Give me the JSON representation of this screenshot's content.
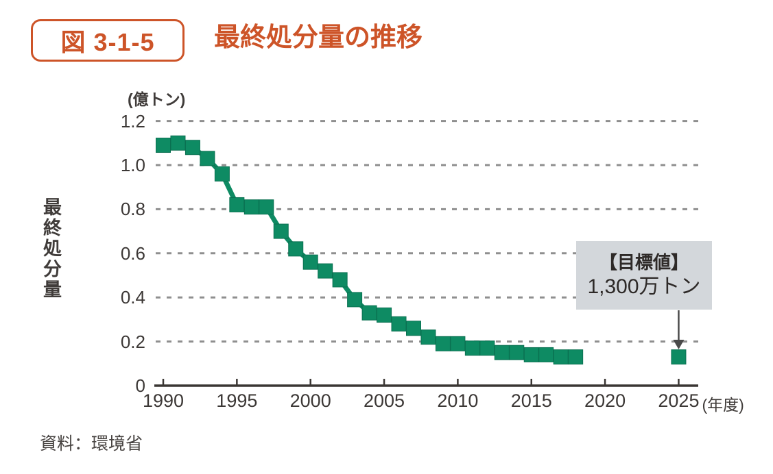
{
  "figure": {
    "badge": "図 3-1-5",
    "title": "最終処分量の推移",
    "source": "資料：環境省"
  },
  "colors": {
    "accent_orange": "#cd5428",
    "series_green": "#0e8b63",
    "series_green_edge": "#0a7051",
    "axis_dark": "#3a3633",
    "grid_gray": "#8f8f8f",
    "annotation_bg": "#d3d7db",
    "arrow_gray": "#4a4a4a",
    "text_dark": "#3c3836"
  },
  "annotation": {
    "line1": "【目標値】",
    "line2": "1,300万トン"
  },
  "chart_data": {
    "type": "line",
    "title": "最終処分量の推移",
    "ylabel": "最終処分量",
    "y_unit": "(億トン)",
    "x_unit_suffix": "(年度)",
    "marker": "square",
    "grid": "dashed-horizontal",
    "legend": "none",
    "ylim": [
      0,
      1.25
    ],
    "yticks": [
      0,
      0.2,
      0.4,
      0.6,
      0.8,
      1.0,
      1.2
    ],
    "ytick_labels": [
      "0",
      "0.2",
      "0.4",
      "0.6",
      "0.8",
      "1.0",
      "1.2"
    ],
    "xticks": [
      1990,
      1995,
      2000,
      2005,
      2010,
      2015,
      2020,
      2025
    ],
    "x": [
      1990,
      1991,
      1992,
      1993,
      1994,
      1995,
      1996,
      1997,
      1998,
      1999,
      2000,
      2001,
      2002,
      2003,
      2004,
      2005,
      2006,
      2007,
      2008,
      2009,
      2010,
      2011,
      2012,
      2013,
      2014,
      2015,
      2016,
      2017,
      2018
    ],
    "series": [
      {
        "name": "最終処分量",
        "values": [
          1.09,
          1.1,
          1.08,
          1.03,
          0.96,
          0.82,
          0.81,
          0.81,
          0.7,
          0.62,
          0.56,
          0.52,
          0.48,
          0.39,
          0.33,
          0.32,
          0.28,
          0.26,
          0.22,
          0.19,
          0.19,
          0.17,
          0.17,
          0.15,
          0.15,
          0.14,
          0.14,
          0.13,
          0.13
        ]
      }
    ],
    "target_point": {
      "x": 2025,
      "value": 0.13,
      "label": "【目標値】1,300万トン"
    }
  }
}
